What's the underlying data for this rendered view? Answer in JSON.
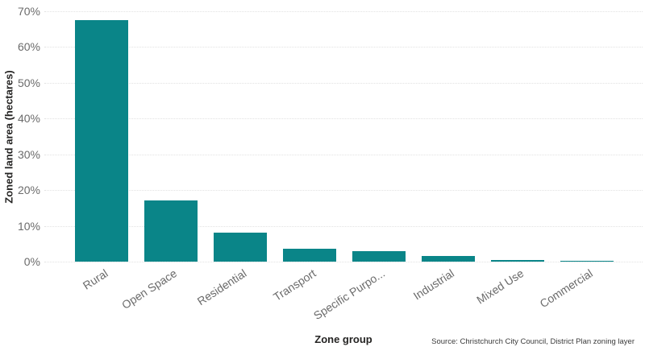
{
  "chart_data": {
    "type": "bar",
    "categories": [
      "Rural",
      "Open Space",
      "Residential",
      "Transport",
      "Specific Purpo...",
      "Industrial",
      "Mixed Use",
      "Commercial"
    ],
    "values": [
      67.5,
      17,
      8,
      3.5,
      3,
      1.5,
      0.4,
      0.2
    ],
    "title": "",
    "xlabel": "Zone group",
    "ylabel": "Zoned land area (hectares)",
    "ylim": [
      0,
      70
    ],
    "ytick_step": 10,
    "ytick_labels": [
      "0%",
      "10%",
      "20%",
      "30%",
      "40%",
      "50%",
      "60%",
      "70%"
    ],
    "grid": "horizontal-dotted",
    "legend": "none"
  },
  "footer": {
    "source": "Source: Christchurch City Council, District Plan zoning layer"
  },
  "colors": {
    "bar": "#0a8588",
    "gridline": "#e2e2e2",
    "tick_label": "#6b6b6b",
    "axis_title": "#252423",
    "source_text": "#3b3b3b",
    "background": "#ffffff"
  }
}
